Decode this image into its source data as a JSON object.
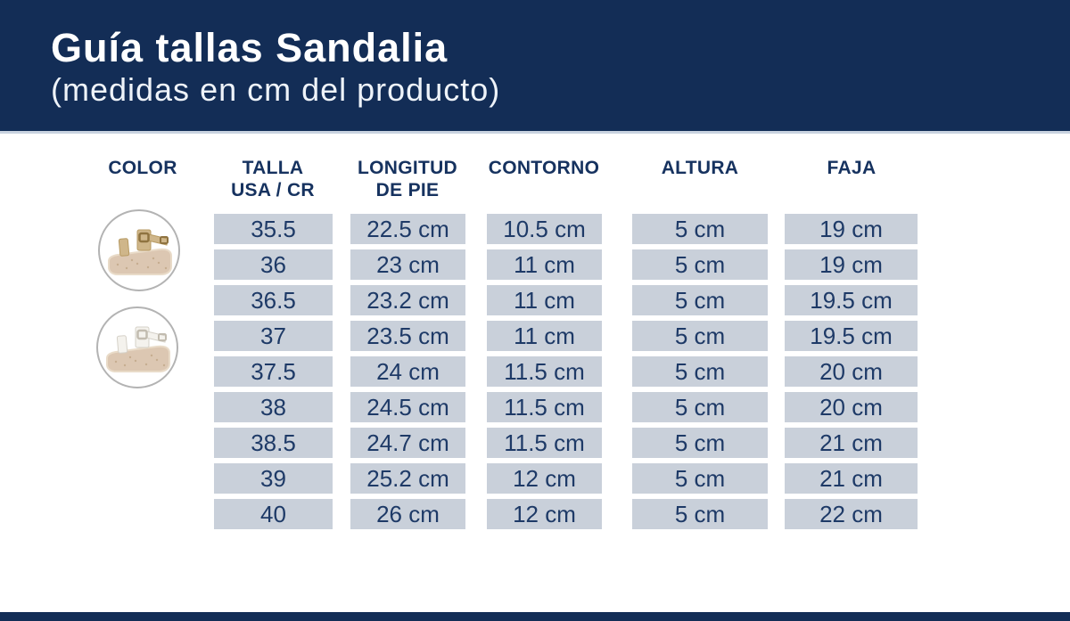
{
  "header": {
    "title": "Guía tallas Sandalia",
    "subtitle": "(medidas en cm del producto)"
  },
  "table": {
    "columns": [
      {
        "line1": "COLOR",
        "line2": ""
      },
      {
        "line1": "TALLA",
        "line2": "USA / CR"
      },
      {
        "line1": "LONGITUD",
        "line2": "DE PIE"
      },
      {
        "line1": "CONTORNO",
        "line2": ""
      },
      {
        "line1": "ALTURA",
        "line2": ""
      },
      {
        "line1": "FAJA",
        "line2": ""
      }
    ],
    "rows": [
      {
        "talla": "35.5",
        "longitud": "22.5 cm",
        "contorno": "10.5 cm",
        "altura": "5 cm",
        "faja": "19 cm"
      },
      {
        "talla": "36",
        "longitud": "23 cm",
        "contorno": "11 cm",
        "altura": "5 cm",
        "faja": "19 cm"
      },
      {
        "talla": "36.5",
        "longitud": "23.2 cm",
        "contorno": "11 cm",
        "altura": "5 cm",
        "faja": "19.5 cm"
      },
      {
        "talla": "37",
        "longitud": "23.5 cm",
        "contorno": "11 cm",
        "altura": "5 cm",
        "faja": "19.5 cm"
      },
      {
        "talla": "37.5",
        "longitud": "24 cm",
        "contorno": "11.5 cm",
        "altura": "5 cm",
        "faja": "20 cm"
      },
      {
        "talla": "38",
        "longitud": "24.5 cm",
        "contorno": "11.5 cm",
        "altura": "5 cm",
        "faja": "20 cm"
      },
      {
        "talla": "38.5",
        "longitud": "24.7 cm",
        "contorno": "11.5 cm",
        "altura": "5 cm",
        "faja": "21 cm"
      },
      {
        "talla": "39",
        "longitud": "25.2 cm",
        "contorno": "12 cm",
        "altura": "5 cm",
        "faja": "21 cm"
      },
      {
        "talla": "40",
        "longitud": "26 cm",
        "contorno": "12 cm",
        "altura": "5 cm",
        "faja": "22 cm"
      }
    ]
  },
  "images": [
    {
      "icon": "gold-sandal-image",
      "strap_color": "#cfb68a",
      "sole_color": "#dcc7b2"
    },
    {
      "icon": "white-sandal-image",
      "strap_color": "#f4f2ed",
      "sole_color": "#dcc7b2"
    }
  ],
  "colors": {
    "navy": "#132d56",
    "header_divider": "#c9d3e0",
    "cell_background": "#c9d0da",
    "cell_text": "#1e3a67",
    "column_header_text": "#16325f",
    "circle_border": "#b3b3b3"
  },
  "chart_data": {
    "type": "table",
    "title": "Guía tallas Sandalia (medidas en cm del producto)",
    "columns": [
      "COLOR",
      "TALLA USA / CR",
      "LONGITUD DE PIE",
      "CONTORNO",
      "ALTURA",
      "FAJA"
    ],
    "rows": [
      [
        "",
        "35.5",
        "22.5 cm",
        "10.5 cm",
        "5 cm",
        "19 cm"
      ],
      [
        "",
        "36",
        "23 cm",
        "11 cm",
        "5 cm",
        "19 cm"
      ],
      [
        "",
        "36.5",
        "23.2 cm",
        "11 cm",
        "5 cm",
        "19.5 cm"
      ],
      [
        "",
        "37",
        "23.5 cm",
        "11 cm",
        "5 cm",
        "19.5 cm"
      ],
      [
        "",
        "37.5",
        "24 cm",
        "11.5 cm",
        "5 cm",
        "20 cm"
      ],
      [
        "",
        "38",
        "24.5 cm",
        "11.5 cm",
        "5 cm",
        "20 cm"
      ],
      [
        "",
        "38.5",
        "24.7 cm",
        "11.5 cm",
        "5 cm",
        "21 cm"
      ],
      [
        "",
        "39",
        "25.2 cm",
        "12 cm",
        "5 cm",
        "21 cm"
      ],
      [
        "",
        "40",
        "26 cm",
        "12 cm",
        "5 cm",
        "22 cm"
      ]
    ],
    "notes": "COLOR column shows two circular product photos: a gold-strap platform sandal and a white-strap platform sandal"
  }
}
